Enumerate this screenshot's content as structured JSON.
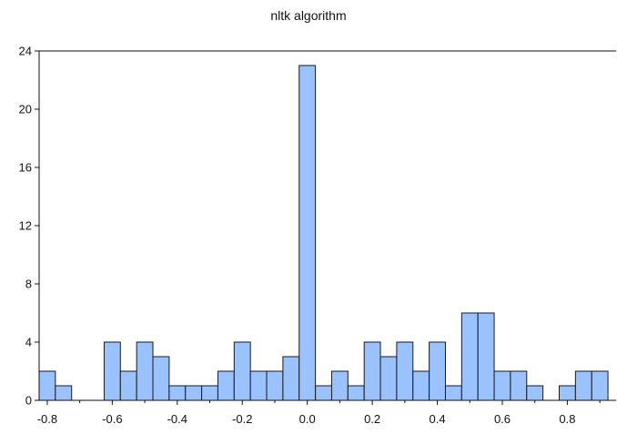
{
  "chart_data": {
    "type": "bar",
    "title": "nltk algorithm",
    "xlabel": "",
    "ylabel": "",
    "bin_width": 0.05,
    "xlim": [
      -0.825,
      0.95
    ],
    "ylim": [
      0,
      24
    ],
    "x_ticks": [
      -0.8,
      -0.6,
      -0.4,
      -0.2,
      0.0,
      0.2,
      0.4,
      0.6,
      0.8
    ],
    "x_tick_labels": [
      "-0.8",
      "-0.6",
      "-0.4",
      "-0.2",
      "0.0",
      "0.2",
      "0.4",
      "0.6",
      "0.8"
    ],
    "y_ticks": [
      0,
      4,
      8,
      12,
      16,
      20,
      24
    ],
    "y_tick_labels": [
      "0",
      "4",
      "8",
      "12",
      "16",
      "20",
      "24"
    ],
    "bin_starts": [
      -0.825,
      -0.775,
      -0.725,
      -0.675,
      -0.625,
      -0.575,
      -0.525,
      -0.475,
      -0.425,
      -0.375,
      -0.325,
      -0.275,
      -0.225,
      -0.175,
      -0.125,
      -0.075,
      -0.025,
      0.025,
      0.075,
      0.125,
      0.175,
      0.225,
      0.275,
      0.325,
      0.375,
      0.425,
      0.475,
      0.525,
      0.575,
      0.625,
      0.675,
      0.725,
      0.775,
      0.825,
      0.875
    ],
    "values": [
      2,
      1,
      0,
      0,
      4,
      2,
      4,
      3,
      1,
      1,
      1,
      2,
      4,
      2,
      2,
      3,
      23,
      1,
      2,
      1,
      4,
      3,
      4,
      2,
      4,
      1,
      6,
      6,
      2,
      2,
      1,
      0,
      1,
      2,
      2
    ],
    "bar_color": "#99c2ff",
    "bar_edge": "#1a1a1a",
    "grid": false,
    "legend": "none"
  }
}
